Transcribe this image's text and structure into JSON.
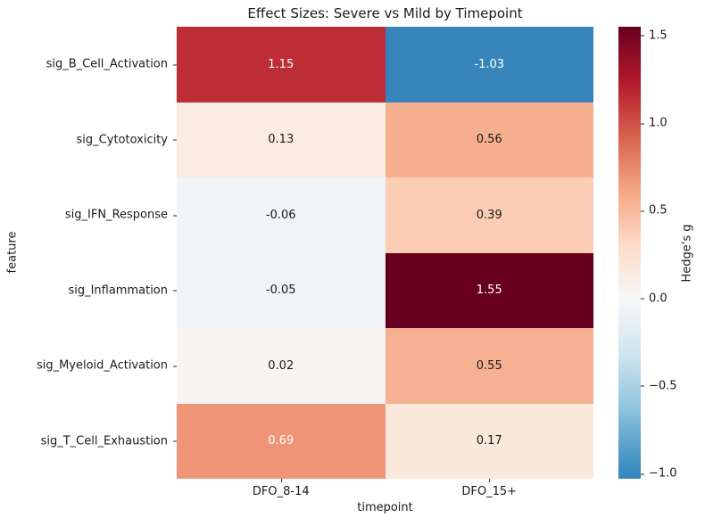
{
  "title": "Effect Sizes: Severe vs Mild by Timepoint",
  "chart_data": {
    "type": "heatmap",
    "title": "Effect Sizes: Severe vs Mild by Timepoint",
    "xlabel": "timepoint",
    "ylabel": "feature",
    "colorbar_label": "Hedge's g",
    "colormap": "RdBu_r",
    "color_domain": [
      -1.03,
      1.55
    ],
    "center": 0,
    "columns": [
      "DFO_8-14",
      "DFO_15+"
    ],
    "rows": [
      "sig_B_Cell_Activation",
      "sig_Cytotoxicity",
      "sig_IFN_Response",
      "sig_Inflammation",
      "sig_Myeloid_Activation",
      "sig_T_Cell_Exhaustion"
    ],
    "values": [
      [
        1.15,
        -1.03
      ],
      [
        0.13,
        0.56
      ],
      [
        -0.06,
        0.39
      ],
      [
        -0.05,
        1.55
      ],
      [
        0.02,
        0.55
      ],
      [
        0.69,
        0.17
      ]
    ],
    "cells": [
      {
        "row": "sig_B_Cell_Activation",
        "col": "DFO_8-14",
        "value": 1.15,
        "label": "1.15",
        "bg": "#bd2d35",
        "fg": "#ffffff"
      },
      {
        "row": "sig_B_Cell_Activation",
        "col": "DFO_15+",
        "value": -1.03,
        "label": "-1.03",
        "bg": "#3885bc",
        "fg": "#ffffff"
      },
      {
        "row": "sig_Cytotoxicity",
        "col": "DFO_8-14",
        "value": 0.13,
        "label": "0.13",
        "bg": "#faebe3",
        "fg": "#1a1a1a"
      },
      {
        "row": "sig_Cytotoxicity",
        "col": "DFO_15+",
        "value": 0.56,
        "label": "0.56",
        "bg": "#f6af8f",
        "fg": "#1a1a1a"
      },
      {
        "row": "sig_IFN_Response",
        "col": "DFO_8-14",
        "value": -0.06,
        "label": "-0.06",
        "bg": "#f0f4f6",
        "fg": "#1a1a1a"
      },
      {
        "row": "sig_IFN_Response",
        "col": "DFO_15+",
        "value": 0.39,
        "label": "0.39",
        "bg": "#fbcdb5",
        "fg": "#1a1a1a"
      },
      {
        "row": "sig_Inflammation",
        "col": "DFO_8-14",
        "value": -0.05,
        "label": "-0.05",
        "bg": "#f1f4f6",
        "fg": "#1a1a1a"
      },
      {
        "row": "sig_Inflammation",
        "col": "DFO_15+",
        "value": 1.55,
        "label": "1.55",
        "bg": "#67001f",
        "fg": "#ffffff"
      },
      {
        "row": "sig_Myeloid_Activation",
        "col": "DFO_8-14",
        "value": 0.02,
        "label": "0.02",
        "bg": "#f7f5f4",
        "fg": "#1a1a1a"
      },
      {
        "row": "sig_Myeloid_Activation",
        "col": "DFO_15+",
        "value": 0.55,
        "label": "0.55",
        "bg": "#f6b192",
        "fg": "#1a1a1a"
      },
      {
        "row": "sig_T_Cell_Exhaustion",
        "col": "DFO_8-14",
        "value": 0.69,
        "label": "0.69",
        "bg": "#ed9576",
        "fg": "#ffffff"
      },
      {
        "row": "sig_T_Cell_Exhaustion",
        "col": "DFO_15+",
        "value": 0.17,
        "label": "0.17",
        "bg": "#fae8dd",
        "fg": "#1a1a1a"
      }
    ],
    "colorbar_ticks": [
      "1.5",
      "1.0",
      "0.5",
      "0.0",
      "−0.5",
      "−1.0"
    ],
    "gradient_stops": [
      "#3885bc 0%",
      "#4393c3 3.9%",
      "#92c5de 15.9%",
      "#d1e5f0 27.9%",
      "#f7f7f7 39.9%",
      "#fddbc7 51.9%",
      "#f4a582 63.9%",
      "#d6604d 76.0%",
      "#b2182b 88.0%",
      "#67001f 100%"
    ],
    "legend_position": "right-colorbar",
    "grid": false
  }
}
